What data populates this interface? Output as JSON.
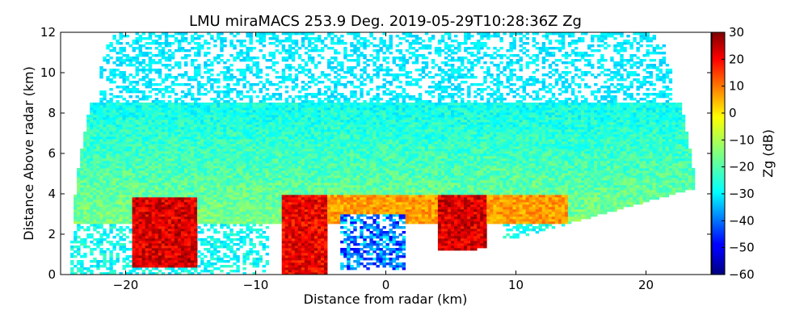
{
  "chart_data": {
    "type": "heatmap",
    "title": "LMU miraMACS 253.9 Deg. 2019-05-29T10:28:36Z  Zg",
    "xlabel": "Distance from radar (km)",
    "ylabel": "Distance Above radar  (km)",
    "xlim": [
      -25,
      25
    ],
    "ylim": [
      0,
      12
    ],
    "x_ticks": [
      "−20",
      "−10",
      "0",
      "10",
      "20"
    ],
    "x_tick_values": [
      -20,
      -10,
      0,
      10,
      20
    ],
    "y_ticks": [
      "0",
      "2",
      "4",
      "6",
      "8",
      "10",
      "12"
    ],
    "y_tick_values": [
      0,
      2,
      4,
      6,
      8,
      10,
      12
    ],
    "colorbar": {
      "label": "Zg (dB)",
      "range": [
        -60,
        30
      ],
      "ticks": [
        "30",
        "20",
        "10",
        "0",
        "−10",
        "−20",
        "−30",
        "−40",
        "−50",
        "−60"
      ],
      "tick_values": [
        30,
        20,
        10,
        0,
        -10,
        -20,
        -30,
        -40,
        -50,
        -60
      ],
      "colormap": "jet"
    },
    "grid": false,
    "features": [
      {
        "name": "cloud_layer",
        "x_range": [
          -24,
          24
        ],
        "z_range": [
          2.5,
          8.5
        ],
        "zg_dB": -15
      },
      {
        "name": "dense_layer",
        "x_range": [
          -8,
          14
        ],
        "z_range": [
          2.5,
          4.0
        ],
        "zg_dB": 5
      },
      {
        "name": "sparse_upper_echoes",
        "x_range": [
          -22,
          22
        ],
        "z_range": [
          7.0,
          12.0
        ],
        "zg_dB": -28
      },
      {
        "name": "rain_shaft_1",
        "x_range": [
          -19.5,
          -14.5
        ],
        "z_range": [
          0.4,
          3.8
        ],
        "zg_dB": 22
      },
      {
        "name": "rain_shaft_2",
        "x_range": [
          -8.0,
          -4.5
        ],
        "z_range": [
          0.0,
          4.0
        ],
        "zg_dB": 20
      },
      {
        "name": "rain_shaft_3",
        "x_range": [
          4.0,
          7.8
        ],
        "z_range": [
          1.2,
          4.0
        ],
        "zg_dB": 22
      },
      {
        "name": "low_reflectivity_gap",
        "x_range": [
          -3.5,
          1.5
        ],
        "z_range": [
          0.2,
          3.0
        ],
        "zg_dB": -50
      }
    ]
  }
}
